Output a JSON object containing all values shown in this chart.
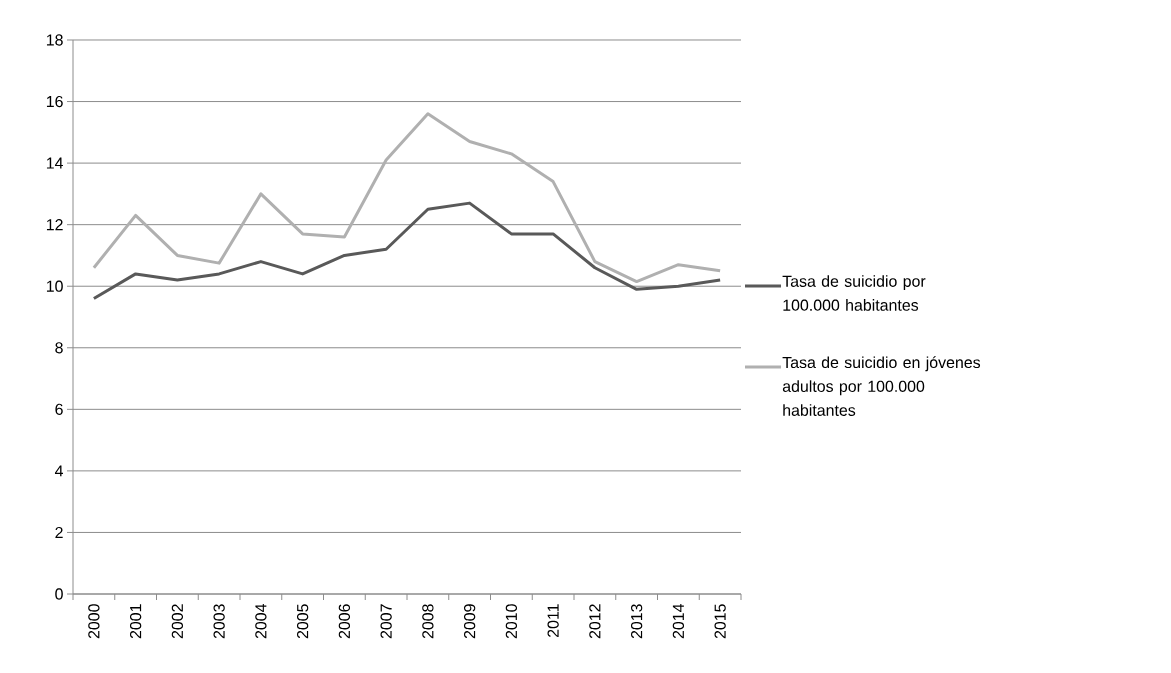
{
  "chart_data": {
    "type": "line",
    "categories": [
      "2000",
      "2001",
      "2002",
      "2003",
      "2004",
      "2005",
      "2006",
      "2007",
      "2008",
      "2009",
      "2010",
      "2011",
      "2012",
      "2013",
      "2014",
      "2015"
    ],
    "series": [
      {
        "name": "Tasa de suicidio por 100.000 habitantes",
        "color": "#595959",
        "values": [
          9.6,
          10.4,
          10.2,
          10.4,
          10.8,
          10.4,
          11.0,
          11.2,
          12.5,
          12.7,
          11.7,
          11.7,
          10.6,
          9.9,
          10.0,
          10.2
        ]
      },
      {
        "name": "Tasa de suicidio en jóvenes adultos por 100.000 habitantes",
        "color": "#b0b0b0",
        "values": [
          10.6,
          12.3,
          11.0,
          10.75,
          13.0,
          11.7,
          11.6,
          14.1,
          15.6,
          14.7,
          14.3,
          13.4,
          10.8,
          10.15,
          10.7,
          10.5
        ]
      }
    ],
    "ylim": [
      0,
      18
    ],
    "yticks": [
      0,
      2,
      4,
      6,
      8,
      10,
      12,
      14,
      16,
      18
    ],
    "grid": "y",
    "legend": "right",
    "marker": "none",
    "line_style": "solid"
  }
}
